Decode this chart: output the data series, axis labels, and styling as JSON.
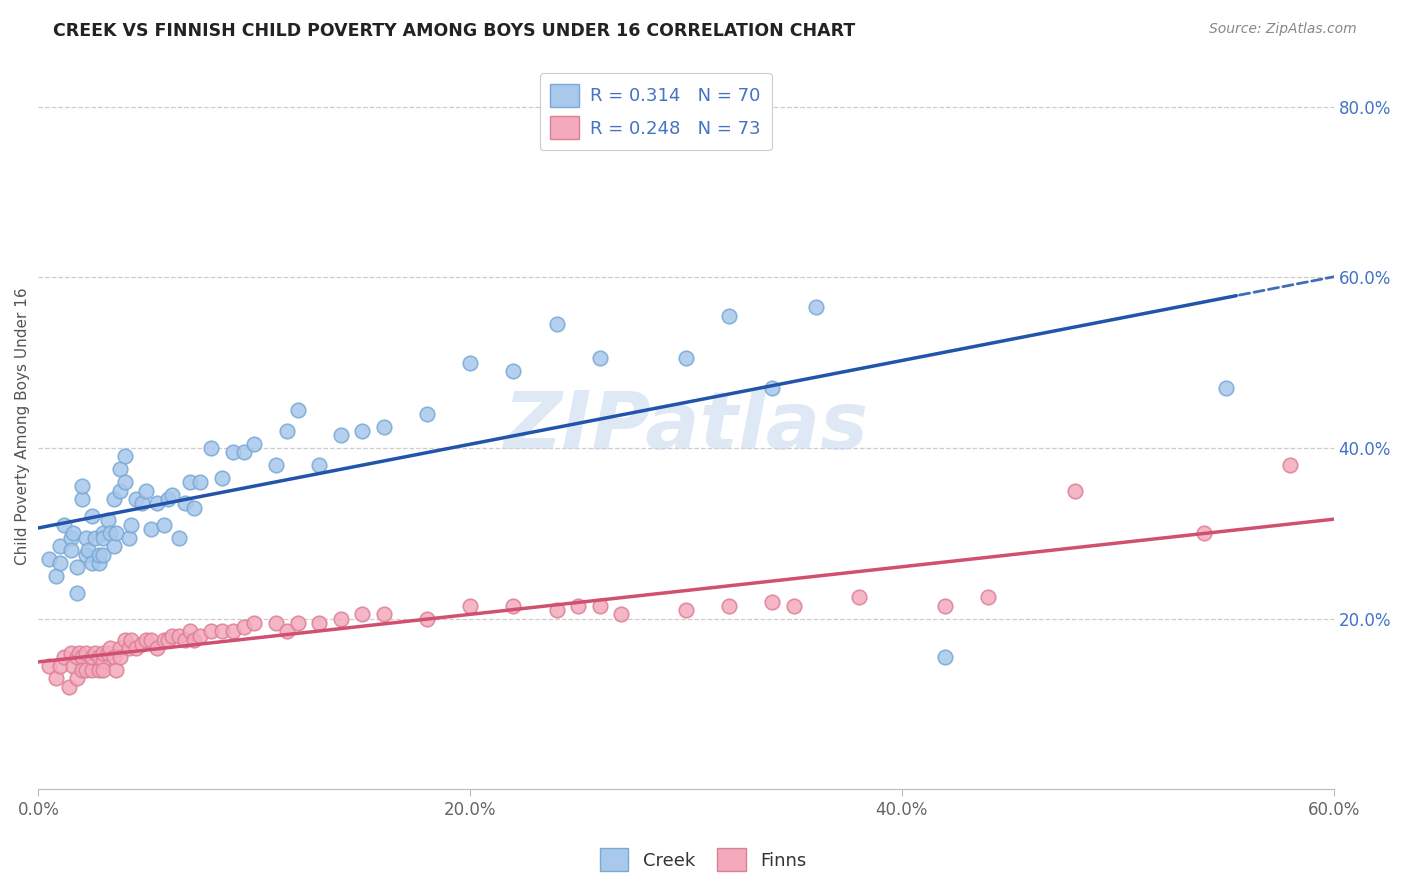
{
  "title": "CREEK VS FINNISH CHILD POVERTY AMONG BOYS UNDER 16 CORRELATION CHART",
  "source": "Source: ZipAtlas.com",
  "ylabel": "Child Poverty Among Boys Under 16",
  "xlim": [
    0.0,
    0.6
  ],
  "ylim": [
    0.0,
    0.85
  ],
  "xtick_labels": [
    "0.0%",
    "20.0%",
    "40.0%",
    "60.0%"
  ],
  "xtick_values": [
    0.0,
    0.2,
    0.4,
    0.6
  ],
  "ytick_labels": [
    "20.0%",
    "40.0%",
    "60.0%",
    "80.0%"
  ],
  "ytick_values": [
    0.2,
    0.4,
    0.6,
    0.8
  ],
  "creek_color": "#A8C8EC",
  "creek_edge_color": "#7AAAD4",
  "finns_color": "#F4AABC",
  "finns_edge_color": "#DC8098",
  "creek_R": 0.314,
  "creek_N": 70,
  "finns_R": 0.248,
  "finns_N": 73,
  "creek_line_color": "#2255AA",
  "finns_line_color": "#D05070",
  "legend_label_color": "#4472C4",
  "watermark_text": "ZIPatlas",
  "watermark_color": "#C5D8EE",
  "background_color": "#FFFFFF",
  "creek_line_solid_end": 0.555,
  "creek_x": [
    0.005,
    0.008,
    0.01,
    0.01,
    0.012,
    0.015,
    0.015,
    0.016,
    0.018,
    0.018,
    0.02,
    0.02,
    0.022,
    0.022,
    0.023,
    0.025,
    0.025,
    0.026,
    0.028,
    0.028,
    0.03,
    0.03,
    0.03,
    0.032,
    0.033,
    0.035,
    0.035,
    0.036,
    0.038,
    0.038,
    0.04,
    0.04,
    0.042,
    0.043,
    0.045,
    0.048,
    0.05,
    0.052,
    0.055,
    0.058,
    0.06,
    0.062,
    0.065,
    0.068,
    0.07,
    0.072,
    0.075,
    0.08,
    0.085,
    0.09,
    0.095,
    0.1,
    0.11,
    0.115,
    0.12,
    0.13,
    0.14,
    0.15,
    0.16,
    0.18,
    0.2,
    0.22,
    0.24,
    0.26,
    0.3,
    0.32,
    0.34,
    0.36,
    0.42,
    0.55
  ],
  "creek_y": [
    0.27,
    0.25,
    0.285,
    0.265,
    0.31,
    0.295,
    0.28,
    0.3,
    0.23,
    0.26,
    0.34,
    0.355,
    0.275,
    0.295,
    0.28,
    0.265,
    0.32,
    0.295,
    0.265,
    0.275,
    0.3,
    0.295,
    0.275,
    0.315,
    0.3,
    0.34,
    0.285,
    0.3,
    0.375,
    0.35,
    0.39,
    0.36,
    0.295,
    0.31,
    0.34,
    0.335,
    0.35,
    0.305,
    0.335,
    0.31,
    0.34,
    0.345,
    0.295,
    0.335,
    0.36,
    0.33,
    0.36,
    0.4,
    0.365,
    0.395,
    0.395,
    0.405,
    0.38,
    0.42,
    0.445,
    0.38,
    0.415,
    0.42,
    0.425,
    0.44,
    0.5,
    0.49,
    0.545,
    0.505,
    0.505,
    0.555,
    0.47,
    0.565,
    0.155,
    0.47
  ],
  "finns_x": [
    0.005,
    0.008,
    0.01,
    0.012,
    0.014,
    0.015,
    0.016,
    0.018,
    0.018,
    0.019,
    0.02,
    0.02,
    0.022,
    0.022,
    0.025,
    0.025,
    0.026,
    0.028,
    0.028,
    0.03,
    0.03,
    0.03,
    0.032,
    0.033,
    0.035,
    0.036,
    0.038,
    0.038,
    0.04,
    0.042,
    0.043,
    0.045,
    0.048,
    0.05,
    0.052,
    0.055,
    0.058,
    0.06,
    0.062,
    0.065,
    0.068,
    0.07,
    0.072,
    0.075,
    0.08,
    0.085,
    0.09,
    0.095,
    0.1,
    0.11,
    0.115,
    0.12,
    0.13,
    0.14,
    0.15,
    0.16,
    0.18,
    0.2,
    0.22,
    0.24,
    0.25,
    0.26,
    0.27,
    0.3,
    0.32,
    0.34,
    0.35,
    0.38,
    0.42,
    0.44,
    0.48,
    0.54,
    0.58
  ],
  "finns_y": [
    0.145,
    0.13,
    0.145,
    0.155,
    0.12,
    0.16,
    0.145,
    0.155,
    0.13,
    0.16,
    0.155,
    0.14,
    0.16,
    0.14,
    0.14,
    0.155,
    0.16,
    0.14,
    0.155,
    0.15,
    0.16,
    0.14,
    0.16,
    0.165,
    0.155,
    0.14,
    0.165,
    0.155,
    0.175,
    0.165,
    0.175,
    0.165,
    0.17,
    0.175,
    0.175,
    0.165,
    0.175,
    0.175,
    0.18,
    0.18,
    0.175,
    0.185,
    0.175,
    0.18,
    0.185,
    0.185,
    0.185,
    0.19,
    0.195,
    0.195,
    0.185,
    0.195,
    0.195,
    0.2,
    0.205,
    0.205,
    0.2,
    0.215,
    0.215,
    0.21,
    0.215,
    0.215,
    0.205,
    0.21,
    0.215,
    0.22,
    0.215,
    0.225,
    0.215,
    0.225,
    0.35,
    0.3,
    0.38
  ]
}
